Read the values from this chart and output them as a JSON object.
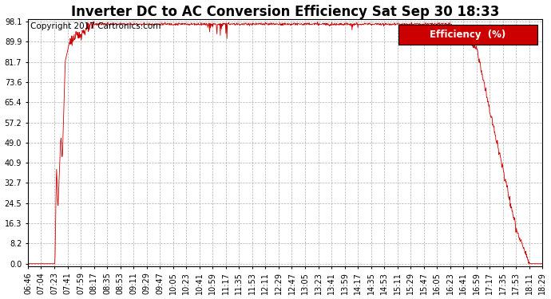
{
  "title": "Inverter DC to AC Conversion Efficiency Sat Sep 30 18:33",
  "copyright": "Copyright 2017 Cartronics.com",
  "legend_label": "Efficiency  (%)",
  "legend_bg": "#cc0000",
  "legend_fg": "#ffffff",
  "line_color": "#cc0000",
  "background_color": "#ffffff",
  "grid_color": "#b0b0b0",
  "yticks": [
    0.0,
    8.2,
    16.3,
    24.5,
    32.7,
    40.9,
    49.0,
    57.2,
    65.4,
    73.6,
    81.7,
    89.9,
    98.1
  ],
  "xtick_labels": [
    "06:46",
    "07:04",
    "07:23",
    "07:41",
    "07:59",
    "08:17",
    "08:35",
    "08:53",
    "09:11",
    "09:29",
    "09:47",
    "10:05",
    "10:23",
    "10:41",
    "10:59",
    "11:17",
    "11:35",
    "11:53",
    "12:11",
    "12:29",
    "12:47",
    "13:05",
    "13:23",
    "13:41",
    "13:59",
    "14:17",
    "14:35",
    "14:53",
    "15:11",
    "15:29",
    "15:47",
    "16:05",
    "16:23",
    "16:41",
    "16:59",
    "17:17",
    "17:35",
    "17:53",
    "18:11",
    "18:29"
  ],
  "ymin": 0.0,
  "ymax": 98.1,
  "title_fontsize": 12,
  "copyright_fontsize": 7.5,
  "tick_fontsize": 7,
  "legend_fontsize": 8.5
}
